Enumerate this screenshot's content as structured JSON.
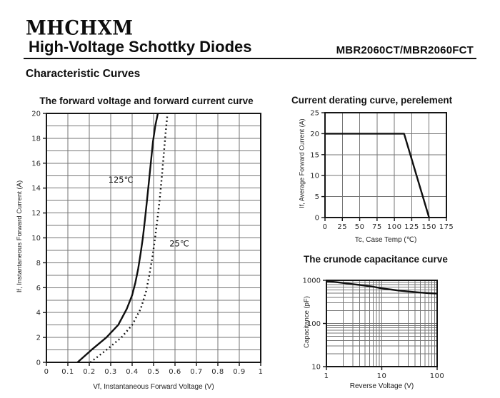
{
  "page": {
    "logo": "MHCHXM",
    "title": "High-Voltage Schottky Diodes",
    "part_number": "MBR2060CT/MBR2060FCT",
    "section_heading": "Characteristic Curves"
  },
  "chart_data": [
    {
      "id": "forward",
      "type": "line",
      "title": "The forward voltage and forward current curve",
      "xlabel": "Vf, Instantaneous Forward Voltage (V)",
      "ylabel": "If, Instantaneous Forward Current (A)",
      "xscale": "linear",
      "yscale": "linear",
      "xlim": [
        0,
        1
      ],
      "ylim": [
        0,
        20
      ],
      "x_grid_step": 0.1,
      "y_grid_step": 1,
      "x_ticks": [
        0,
        0.1,
        0.2,
        0.3,
        0.4,
        0.5,
        0.6,
        0.7,
        0.8,
        0.9,
        1
      ],
      "x_tick_labels": [
        "0",
        "0.1",
        "0.2",
        "0.3",
        "0.4",
        "0.5",
        "0.6",
        "0.7",
        "0.8",
        "0.9",
        "1"
      ],
      "y_ticks": [
        0,
        2,
        4,
        6,
        8,
        10,
        12,
        14,
        16,
        18,
        20
      ],
      "y_tick_labels": [
        "0",
        "2",
        "4",
        "6",
        "8",
        "10",
        "12",
        "14",
        "16",
        "18",
        "20"
      ],
      "grid": true,
      "series": [
        {
          "name": "125℃",
          "style": "solid",
          "points": [
            [
              0.145,
              0
            ],
            [
              0.21,
              1
            ],
            [
              0.28,
              2
            ],
            [
              0.335,
              3
            ],
            [
              0.375,
              4.3
            ],
            [
              0.4,
              5.4
            ],
            [
              0.415,
              6.4
            ],
            [
              0.428,
              7.5
            ],
            [
              0.44,
              8.8
            ],
            [
              0.45,
              10
            ],
            [
              0.46,
              11.5
            ],
            [
              0.468,
              12.8
            ],
            [
              0.477,
              14.3
            ],
            [
              0.487,
              16
            ],
            [
              0.497,
              17.7
            ],
            [
              0.508,
              19
            ],
            [
              0.52,
              20
            ]
          ]
        },
        {
          "name": "25℃",
          "style": "dotted",
          "points": [
            [
              0.205,
              0
            ],
            [
              0.28,
              1
            ],
            [
              0.35,
              2
            ],
            [
              0.4,
              3
            ],
            [
              0.44,
              4.3
            ],
            [
              0.465,
              5.7
            ],
            [
              0.48,
              7
            ],
            [
              0.495,
              8.5
            ],
            [
              0.507,
              10
            ],
            [
              0.518,
              11.5
            ],
            [
              0.528,
              13
            ],
            [
              0.538,
              14.8
            ],
            [
              0.548,
              16.8
            ],
            [
              0.556,
              18.4
            ],
            [
              0.565,
              20
            ]
          ]
        }
      ],
      "annotations": [
        {
          "text": "125℃",
          "x": 0.347,
          "y": 14.45
        },
        {
          "text": "25℃",
          "x": 0.62,
          "y": 9.3
        }
      ]
    },
    {
      "id": "derating",
      "type": "line",
      "title": "Current derating curve, perelement",
      "xlabel": "Tc, Case Temp (℃)",
      "ylabel": "If, Average Forward Current (A)",
      "xscale": "linear",
      "yscale": "linear",
      "xlim": [
        0,
        175
      ],
      "ylim": [
        0,
        25
      ],
      "x_grid_step": 25,
      "y_grid_step": 5,
      "x_ticks": [
        0,
        25,
        50,
        75,
        100,
        125,
        150,
        175
      ],
      "x_tick_labels": [
        "0",
        "25",
        "50",
        "75",
        "100",
        "125",
        "150",
        "175"
      ],
      "y_ticks": [
        0,
        5,
        10,
        15,
        20,
        25
      ],
      "y_tick_labels": [
        "0",
        "5",
        "10",
        "15",
        "20",
        "25"
      ],
      "grid": true,
      "series": [
        {
          "name": "derating",
          "style": "solid",
          "points": [
            [
              0,
              20
            ],
            [
              114,
              20
            ],
            [
              150,
              0
            ]
          ]
        }
      ],
      "annotations": []
    },
    {
      "id": "capacitance",
      "type": "line",
      "title": "The crunode capacitance curve",
      "xlabel": "Reverse Voltage (V)",
      "ylabel": "Capacitance (pF)",
      "xscale": "log",
      "yscale": "log",
      "xlim": [
        1,
        100
      ],
      "ylim": [
        10,
        1000
      ],
      "x_ticks": [
        1,
        10,
        100
      ],
      "x_tick_labels": [
        "1",
        "10",
        "100"
      ],
      "y_ticks": [
        10,
        100,
        1000
      ],
      "y_tick_labels": [
        "10",
        "100",
        "1000"
      ],
      "grid": true,
      "series": [
        {
          "name": "capacitance",
          "style": "solid",
          "points": [
            [
              1,
              950
            ],
            [
              1.5,
              905
            ],
            [
              2,
              870
            ],
            [
              3,
              815
            ],
            [
              4,
              780
            ],
            [
              5,
              755
            ],
            [
              7,
              710
            ],
            [
              10,
              650
            ],
            [
              15,
              610
            ],
            [
              20,
              580
            ],
            [
              30,
              550
            ],
            [
              50,
              520
            ],
            [
              70,
              505
            ],
            [
              100,
              492
            ]
          ]
        }
      ],
      "annotations": []
    }
  ]
}
